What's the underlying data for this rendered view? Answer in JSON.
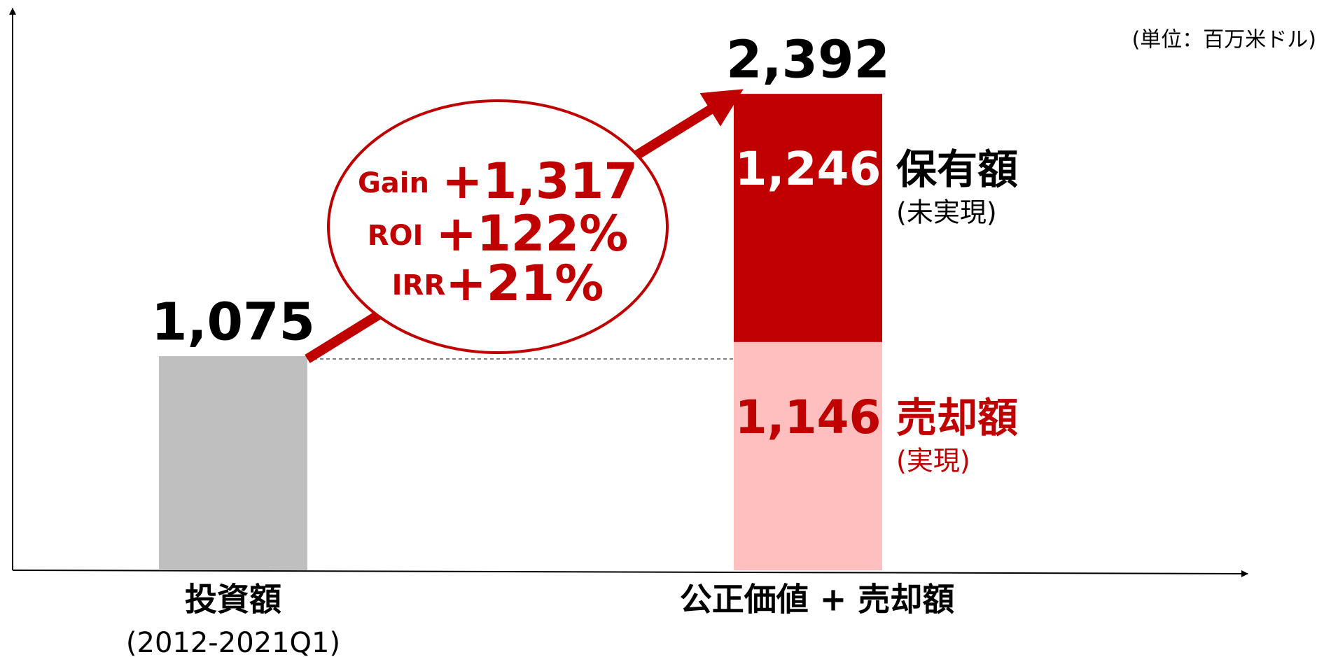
{
  "chart_data": {
    "type": "stacked_bar",
    "unit_label": "(単位：百万米ドル)",
    "categories": [
      "投資額",
      "公正価値 + 売却額"
    ],
    "category_sublabels": [
      "(2012-2021Q1)",
      null
    ],
    "series": [
      {
        "color": "#bfbfbf",
        "values": [
          1075,
          null
        ]
      },
      {
        "name": "売却額",
        "note": "(実現)",
        "color": "#ffbfbf",
        "name_color": "#c00000",
        "values": [
          null,
          1146
        ],
        "value_labels": [
          null,
          "1,146"
        ],
        "label_color": "#c00000"
      },
      {
        "name": "保有額",
        "note": "(未実現)",
        "color": "#c00000",
        "name_color": "#000000",
        "values": [
          null,
          1246
        ],
        "value_labels": [
          null,
          "1,246"
        ],
        "label_color": "#ffffff"
      }
    ],
    "totals": [
      1075,
      2392
    ],
    "total_labels": [
      "1,075",
      "2,392"
    ],
    "annotations": [
      {
        "label": "Gain",
        "value_label": "+1,317"
      },
      {
        "label": "ROI",
        "value_label": "+122%"
      },
      {
        "label": "IRR",
        "value_label": "+21%"
      }
    ],
    "ylim": [
      0,
      2800
    ]
  }
}
